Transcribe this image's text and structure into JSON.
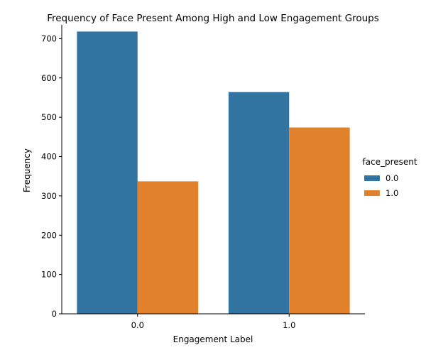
{
  "chart_data": {
    "type": "bar",
    "title": "Frequency of Face Present Among High and Low Engagement Groups",
    "xlabel": "Engagement Label",
    "ylabel": "Frequency",
    "categories": [
      "0.0",
      "1.0"
    ],
    "series": [
      {
        "name": "0.0",
        "values": [
          718,
          564
        ],
        "color": "#3274a1"
      },
      {
        "name": "1.0",
        "values": [
          337,
          474
        ],
        "color": "#e1812c"
      }
    ],
    "ylim": [
      0,
      735
    ],
    "yticks": [
      0,
      100,
      200,
      300,
      400,
      500,
      600,
      700
    ],
    "legend": {
      "title": "face_present",
      "placement": "right"
    },
    "grid": false
  }
}
